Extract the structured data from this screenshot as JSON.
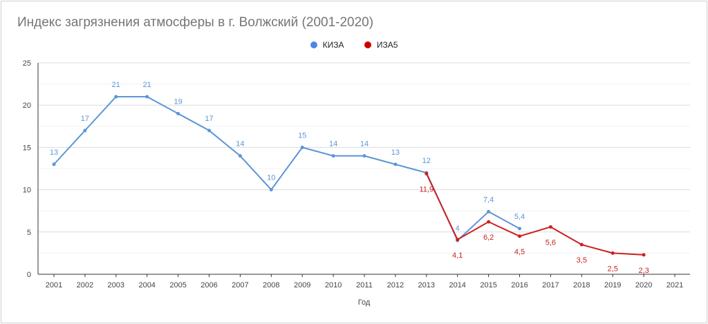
{
  "chart_data": {
    "type": "line",
    "title": "Индекс загрязнения атмосферы в г. Волжский (2001-2020)",
    "xlabel": "Год",
    "ylabel": "",
    "categories": [
      "2001",
      "2002",
      "2003",
      "2004",
      "2005",
      "2006",
      "2007",
      "2008",
      "2009",
      "2010",
      "2011",
      "2012",
      "2013",
      "2014",
      "2015",
      "2016",
      "2017",
      "2018",
      "2019",
      "2020",
      "2021"
    ],
    "ylim": [
      0,
      25
    ],
    "yticks": [
      0,
      5,
      10,
      15,
      20,
      25
    ],
    "grid": true,
    "legend_position": "top",
    "series": [
      {
        "name": "КИЗА",
        "color": "#5b95d6",
        "values": [
          13,
          17,
          21,
          21,
          19,
          17,
          14,
          10,
          15,
          14,
          14,
          13,
          12,
          4,
          7.4,
          5.4,
          null,
          null,
          null,
          null,
          null
        ],
        "labels": [
          "13",
          "17",
          "21",
          "21",
          "19",
          "17",
          "14",
          "10",
          "15",
          "14",
          "14",
          "13",
          "12",
          "4",
          "7,4",
          "5,4",
          "",
          "",
          "",
          "",
          ""
        ]
      },
      {
        "name": "ИЗА5",
        "color": "#cc1f1f",
        "values": [
          null,
          null,
          null,
          null,
          null,
          null,
          null,
          null,
          null,
          null,
          null,
          null,
          11.9,
          4.1,
          6.2,
          4.5,
          5.6,
          3.5,
          2.5,
          2.3,
          null
        ],
        "labels": [
          "",
          "",
          "",
          "",
          "",
          "",
          "",
          "",
          "",
          "",
          "",
          "",
          "11,9",
          "4,1",
          "6,2",
          "4,5",
          "5,6",
          "3,5",
          "2,5",
          "2,3",
          ""
        ]
      }
    ]
  },
  "legend": {
    "items": [
      {
        "label": "КИЗА",
        "color": "#4a86e8"
      },
      {
        "label": "ИЗА5",
        "color": "#cc0000"
      }
    ]
  }
}
